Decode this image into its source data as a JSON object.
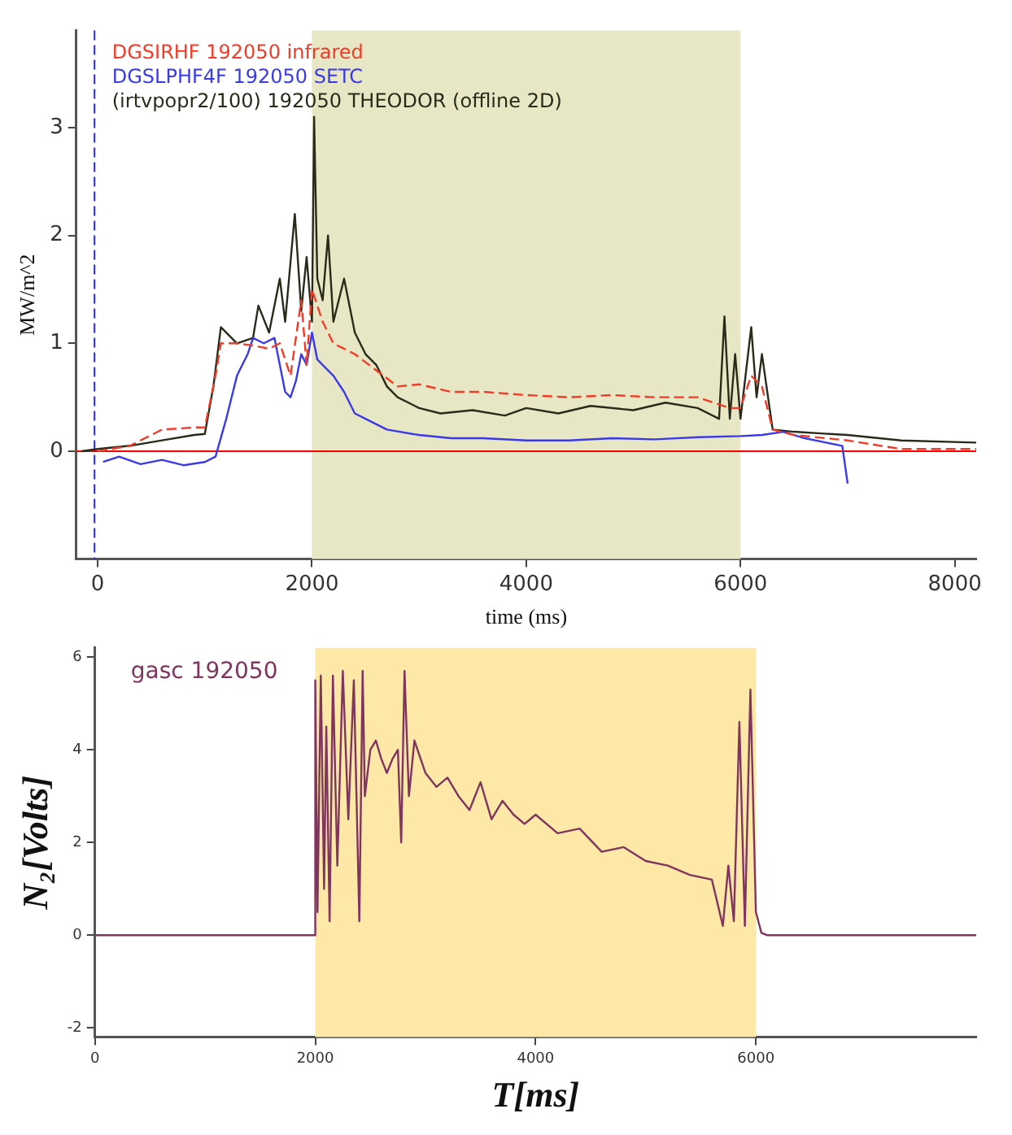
{
  "chart_data": [
    {
      "type": "line",
      "xlabel": "time (ms)",
      "ylabel": "MW/m^2",
      "xlim": [
        -200,
        8200
      ],
      "ylim": [
        -1,
        3.9
      ],
      "xticks": [
        0,
        2000,
        4000,
        6000,
        8000
      ],
      "yticks": [
        0,
        1,
        2,
        3
      ],
      "grid": false,
      "legend": "top left",
      "marker": "none",
      "bands": [
        {
          "axis": "x",
          "from": 2000,
          "to": 6000,
          "color": "#e8e7c5"
        }
      ],
      "ref_lines": [
        {
          "axis": "y",
          "value": 0,
          "color": "#ff0000",
          "line_style": "solid"
        },
        {
          "axis": "x",
          "value": -30,
          "color": "#2b2bff",
          "line_style": "dashed"
        }
      ],
      "series": [
        {
          "name": "DGSIRHF 192050 infrared",
          "color": "#f03c28",
          "line_style": "dashed",
          "x": [
            0,
            300,
            600,
            900,
            1000,
            1100,
            1150,
            1300,
            1450,
            1600,
            1700,
            1800,
            1900,
            1950,
            2000,
            2100,
            2200,
            2400,
            2600,
            2800,
            3000,
            3300,
            3600,
            4000,
            4400,
            4800,
            5200,
            5600,
            5900,
            6000,
            6100,
            6200,
            6300,
            6500,
            7000,
            7500,
            8200
          ],
          "values": [
            0,
            0.05,
            0.2,
            0.22,
            0.22,
            0.7,
            1.0,
            1.0,
            0.98,
            0.95,
            1.0,
            0.7,
            1.4,
            0.8,
            1.5,
            1.2,
            1.0,
            0.9,
            0.75,
            0.6,
            0.62,
            0.55,
            0.55,
            0.52,
            0.5,
            0.52,
            0.5,
            0.5,
            0.4,
            0.4,
            0.7,
            0.6,
            0.2,
            0.15,
            0.1,
            0.02,
            0.02
          ]
        },
        {
          "name": "DGSLPHF4F 192050 SETC",
          "color": "#3a3ae8",
          "line_style": "solid",
          "x": [
            50,
            200,
            400,
            600,
            800,
            1000,
            1100,
            1200,
            1300,
            1400,
            1450,
            1550,
            1650,
            1700,
            1750,
            1800,
            1850,
            1900,
            1950,
            2000,
            2050,
            2100,
            2200,
            2300,
            2400,
            2500,
            2700,
            3000,
            3300,
            3600,
            4000,
            4400,
            4800,
            5200,
            5600,
            6000,
            6200,
            6400,
            6600,
            6800,
            6950,
            7000
          ],
          "values": [
            -0.1,
            -0.05,
            -0.12,
            -0.08,
            -0.13,
            -0.1,
            -0.05,
            0.3,
            0.7,
            0.9,
            1.05,
            1.0,
            1.05,
            0.8,
            0.55,
            0.5,
            0.65,
            0.9,
            0.8,
            1.1,
            0.85,
            0.8,
            0.7,
            0.55,
            0.35,
            0.3,
            0.2,
            0.15,
            0.12,
            0.12,
            0.1,
            0.1,
            0.12,
            0.11,
            0.13,
            0.14,
            0.15,
            0.18,
            0.12,
            0.08,
            0.05,
            -0.3
          ]
        },
        {
          "name": "(irtvpopr2/100) 192050 THEODOR (offline 2D)",
          "color": "#2a2a1a",
          "line_style": "solid",
          "x": [
            -150,
            0,
            300,
            600,
            900,
            1000,
            1080,
            1150,
            1300,
            1450,
            1500,
            1600,
            1700,
            1750,
            1840,
            1900,
            1950,
            2000,
            2020,
            2050,
            2100,
            2150,
            2200,
            2300,
            2400,
            2500,
            2600,
            2700,
            2800,
            3000,
            3200,
            3500,
            3800,
            4000,
            4300,
            4600,
            5000,
            5300,
            5600,
            5800,
            5850,
            5900,
            5950,
            6000,
            6100,
            6150,
            6200,
            6300,
            6500,
            7000,
            7500,
            8200
          ],
          "values": [
            0,
            0.02,
            0.05,
            0.1,
            0.15,
            0.16,
            0.6,
            1.15,
            1.0,
            1.05,
            1.35,
            1.1,
            1.6,
            1.2,
            2.2,
            1.3,
            1.8,
            1.2,
            3.1,
            1.6,
            1.4,
            2.0,
            1.2,
            1.6,
            1.1,
            0.9,
            0.8,
            0.6,
            0.5,
            0.4,
            0.35,
            0.38,
            0.33,
            0.4,
            0.35,
            0.42,
            0.38,
            0.45,
            0.4,
            0.3,
            1.25,
            0.3,
            0.9,
            0.3,
            1.15,
            0.5,
            0.9,
            0.2,
            0.18,
            0.15,
            0.1,
            0.08
          ]
        }
      ]
    },
    {
      "type": "line",
      "xlabel": "T[ms]",
      "ylabel": "N₂[Volts]",
      "xlim": [
        0,
        8000
      ],
      "ylim": [
        -2.2,
        6.2
      ],
      "xticks": [
        0,
        2000,
        4000,
        6000
      ],
      "yticks": [
        -2,
        0,
        2,
        4,
        6
      ],
      "grid": false,
      "legend": "top left",
      "marker": "none",
      "bands": [
        {
          "axis": "x",
          "from": 2000,
          "to": 6000,
          "color": "#fde8a8"
        }
      ],
      "series": [
        {
          "name": "gasc 192050",
          "color": "#80355f",
          "line_style": "solid",
          "x": [
            0,
            1000,
            1990,
            2000,
            2020,
            2050,
            2080,
            2100,
            2130,
            2160,
            2200,
            2250,
            2300,
            2350,
            2400,
            2430,
            2450,
            2500,
            2550,
            2600,
            2650,
            2700,
            2750,
            2780,
            2810,
            2850,
            2900,
            3000,
            3100,
            3200,
            3300,
            3400,
            3500,
            3600,
            3700,
            3800,
            3900,
            4000,
            4200,
            4400,
            4600,
            4800,
            5000,
            5200,
            5400,
            5600,
            5700,
            5750,
            5800,
            5850,
            5900,
            5950,
            6000,
            6050,
            6100,
            7000,
            8000
          ],
          "values": [
            0,
            0,
            0,
            5.5,
            0.5,
            5.6,
            1.0,
            4.5,
            0.3,
            5.6,
            1.5,
            5.7,
            2.5,
            5.5,
            0.3,
            5.7,
            3.0,
            4.0,
            4.2,
            3.8,
            3.5,
            3.8,
            4.0,
            2.0,
            5.7,
            3.0,
            4.2,
            3.5,
            3.2,
            3.4,
            3.0,
            2.7,
            3.3,
            2.5,
            2.9,
            2.6,
            2.4,
            2.6,
            2.2,
            2.3,
            1.8,
            1.9,
            1.6,
            1.5,
            1.3,
            1.2,
            0.2,
            1.5,
            0.3,
            4.6,
            0.2,
            5.3,
            0.5,
            0.05,
            0,
            0,
            0
          ]
        }
      ]
    }
  ]
}
